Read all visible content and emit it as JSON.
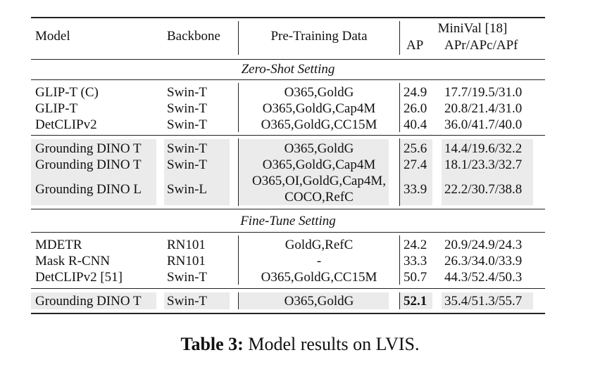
{
  "header": {
    "model": "Model",
    "backbone": "Backbone",
    "pretraining": "Pre-Training Data",
    "minival": "MiniVal [18]",
    "ap": "AP",
    "apr": "APr/APc/APf"
  },
  "sections": {
    "zero_shot": "Zero-Shot Setting",
    "fine_tune": "Fine-Tune Setting"
  },
  "rows": [
    {
      "model": "GLIP-T (C)",
      "backbone": "Swin-T",
      "data": "O365,GoldG",
      "ap": "24.9",
      "apr": "17.7/19.5/31.0"
    },
    {
      "model": "GLIP-T",
      "backbone": "Swin-T",
      "data": "O365,GoldG,Cap4M",
      "ap": "26.0",
      "apr": "20.8/21.4/31.0"
    },
    {
      "model": "DetCLIPv2",
      "backbone": "Swin-T",
      "data": "O365,GoldG,CC15M",
      "ap": "40.4",
      "apr": "36.0/41.7/40.0"
    },
    {
      "model": "Grounding DINO T",
      "backbone": "Swin-T",
      "data": "O365,GoldG",
      "ap": "25.6",
      "apr": "14.4/19.6/32.2"
    },
    {
      "model": "Grounding DINO T",
      "backbone": "Swin-T",
      "data": "O365,GoldG,Cap4M",
      "ap": "27.4",
      "apr": "18.1/23.3/32.7"
    },
    {
      "model": "Grounding DINO L",
      "backbone": "Swin-L",
      "data": "O365,OI,GoldG,Cap4M,",
      "data2": "COCO,RefC",
      "ap": "33.9",
      "apr": "22.2/30.7/38.8"
    },
    {
      "model": "MDETR",
      "backbone": "RN101",
      "data": "GoldG,RefC",
      "ap": "24.2",
      "apr": "20.9/24.9/24.3"
    },
    {
      "model": "Mask R-CNN",
      "backbone": "RN101",
      "data": "-",
      "ap": "33.3",
      "apr": "26.3/34.0/33.9"
    },
    {
      "model": "DetCLIPv2 [51]",
      "backbone": "Swin-T",
      "data": "O365,GoldG,CC15M",
      "ap": "50.7",
      "apr": "44.3/52.4/50.3"
    },
    {
      "model": "Grounding DINO T",
      "backbone": "Swin-T",
      "data": "O365,GoldG",
      "ap": "52.1",
      "apr": "35.4/51.3/55.7"
    }
  ],
  "caption": {
    "label": "Table 3:",
    "text": " Model results on LVIS."
  }
}
